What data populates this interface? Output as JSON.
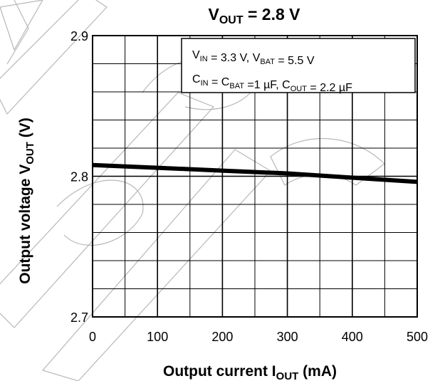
{
  "chart_data": {
    "type": "line",
    "title": {
      "main": "V",
      "sub": "OUT",
      "rest": " = 2.8 V"
    },
    "xlabel": {
      "main": "Output current   I",
      "sub": "OUT",
      "rest": "   (mA)"
    },
    "ylabel": {
      "main": "Output voltage   V",
      "sub": "OUT",
      "rest": "   (V)"
    },
    "xlim": [
      0,
      500
    ],
    "ylim": [
      2.7,
      2.9
    ],
    "x_ticks": [
      "0",
      "100",
      "200",
      "300",
      "400",
      "500"
    ],
    "y_ticks": [
      "2.7",
      "2.8",
      "2.9"
    ],
    "grid": true,
    "legend_position": "top-right",
    "conditions": [
      [
        {
          "t": "V"
        },
        {
          "t": "IN",
          "sub": true
        },
        {
          "t": " = 3.3 V, V"
        },
        {
          "t": "BAT",
          "sub": true
        },
        {
          "t": " = 5.5 V"
        }
      ],
      [
        {
          "t": "C"
        },
        {
          "t": "IN",
          "sub": true
        },
        {
          "t": " = C"
        },
        {
          "t": "BAT",
          "sub": true
        },
        {
          "t": " =1 µF, C"
        },
        {
          "t": "OUT",
          "sub": true
        },
        {
          "t": " = 2.2 µF"
        }
      ]
    ],
    "series": [
      {
        "x": [
          0,
          100,
          200,
          300,
          400,
          500
        ],
        "y": [
          2.808,
          2.806,
          2.804,
          2.802,
          2.799,
          2.796
        ]
      }
    ]
  }
}
